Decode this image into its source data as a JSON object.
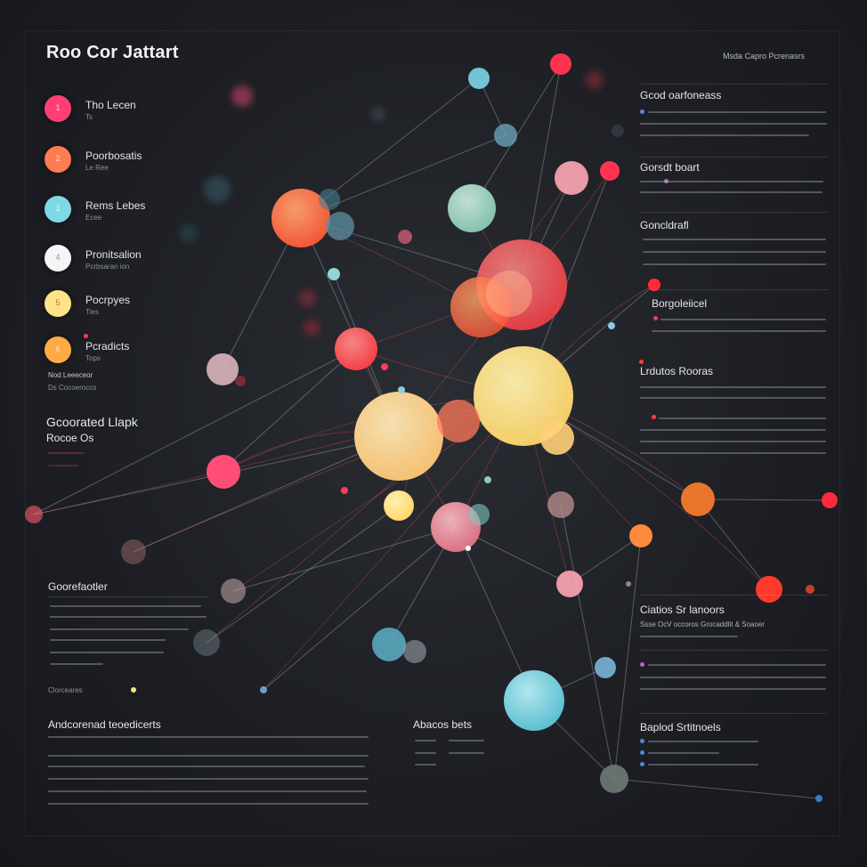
{
  "header": {
    "title": "Roo Cor Jattart",
    "top_right": "Msda Capro Pcrenasrs"
  },
  "legend": [
    {
      "num": "1",
      "label": "Tho Lecen",
      "sub": "Ts",
      "color": "#ff3f73"
    },
    {
      "num": "2",
      "label": "Poorbosatis",
      "sub": "Le Ree",
      "color": "#ff7b52"
    },
    {
      "num": "3",
      "label": "Rems Lebes",
      "sub": "Ecee",
      "color": "#7fd8e6"
    },
    {
      "num": "4",
      "label": "Pronitsalion",
      "sub": "Pcrbsaran ion",
      "color": "#f5f5f7"
    },
    {
      "num": "5",
      "label": "Pocrpyes",
      "sub": "Ties",
      "color": "#ffe38a"
    },
    {
      "num": "6",
      "label": "Pcradicts",
      "sub": "Tops",
      "color": "#ffab45"
    }
  ],
  "legend_extra": {
    "line1": "Nod Leeeceor",
    "line2": "Ds Cocoeroccs"
  },
  "left_block": {
    "head1": "Gcoorated Llapk",
    "head2": "Rocoe Os"
  },
  "left_panel": {
    "head": "Goorefaotler",
    "line4": "Clorceares"
  },
  "bottom_left": {
    "head": "Andcorenad teoedicerts"
  },
  "bottom_center": {
    "head": "Abacos bets"
  },
  "right_panel": {
    "sec1": "Gcod oarfoneass",
    "sec2": "Gorsdt boart",
    "sec3": "Goncldrafl",
    "sec4": "Borgoleiicel",
    "sec5": "Lrdutos Rooras",
    "sec6": "Ciatios Sr lanoors",
    "sec6_sub": "Ssse OcV occoros Grocaddlit & Soaoer",
    "sec7": "Baplod Srtitnoels"
  },
  "nodes": [
    {
      "id": "n1",
      "color": "#ff6a4f"
    },
    {
      "id": "n2",
      "color": "#9fe0c8"
    },
    {
      "id": "n3",
      "color": "#ff5a5a"
    },
    {
      "id": "n4",
      "color": "#ffe28a"
    },
    {
      "id": "n5",
      "color": "#ffd48a"
    },
    {
      "id": "n6",
      "color": "#ff4d5a"
    },
    {
      "id": "n7",
      "color": "#7ad8e8"
    },
    {
      "id": "n8",
      "color": "#ff8a8a"
    },
    {
      "id": "n9",
      "color": "#ff3f73"
    },
    {
      "id": "n10",
      "color": "#ffe07a"
    },
    {
      "id": "n11",
      "color": "#ff6a4f"
    },
    {
      "id": "n12",
      "color": "#ff4a3a"
    },
    {
      "id": "n13",
      "color": "#ff8c3a"
    }
  ]
}
